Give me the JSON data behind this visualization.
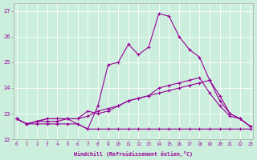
{
  "xlabel": "Windchill (Refroidissement éolien,°C)",
  "bg_color": "#cceedd",
  "line_color": "#990099",
  "ylim": [
    22.0,
    27.3
  ],
  "xlim": [
    -0.3,
    23.3
  ],
  "yticks": [
    22,
    23,
    24,
    25,
    26,
    27
  ],
  "xticks": [
    0,
    1,
    2,
    3,
    4,
    5,
    6,
    7,
    8,
    9,
    10,
    11,
    12,
    13,
    14,
    15,
    16,
    17,
    18,
    19,
    20,
    21,
    22,
    23
  ],
  "series": [
    {
      "x": [
        0,
        1,
        2,
        3,
        4,
        5,
        6,
        7,
        8,
        9,
        10,
        11,
        12,
        13,
        14,
        15,
        16,
        17,
        18,
        19,
        20,
        21,
        22,
        23
      ],
      "y": [
        22.8,
        22.6,
        22.6,
        22.6,
        22.6,
        22.6,
        22.6,
        22.4,
        22.4,
        22.4,
        22.4,
        22.4,
        22.4,
        22.4,
        22.4,
        22.4,
        22.4,
        22.4,
        22.4,
        22.4,
        22.4,
        22.4,
        22.4,
        22.4
      ]
    },
    {
      "x": [
        0,
        1,
        2,
        3,
        4,
        5,
        6,
        7,
        8,
        9,
        10,
        11,
        12,
        13,
        14,
        15,
        16,
        17,
        18,
        19,
        20,
        21,
        22,
        23
      ],
      "y": [
        22.8,
        22.6,
        22.7,
        22.7,
        22.7,
        22.8,
        22.8,
        22.9,
        23.1,
        23.2,
        23.3,
        23.5,
        23.6,
        23.7,
        23.8,
        23.9,
        24.0,
        24.1,
        24.2,
        24.3,
        23.5,
        23.0,
        22.8,
        22.5
      ]
    },
    {
      "x": [
        0,
        1,
        2,
        3,
        4,
        5,
        6,
        7,
        8,
        9,
        10,
        11,
        12,
        13,
        14,
        15,
        16,
        17,
        18,
        19,
        20,
        21,
        22,
        23
      ],
      "y": [
        22.8,
        22.6,
        22.7,
        22.8,
        22.8,
        22.8,
        22.6,
        22.4,
        23.3,
        24.9,
        25.0,
        25.7,
        25.3,
        25.6,
        26.9,
        26.8,
        26.0,
        25.5,
        25.2,
        24.3,
        23.7,
        23.0,
        22.8,
        22.5
      ]
    },
    {
      "x": [
        0,
        1,
        2,
        3,
        4,
        5,
        6,
        7,
        8,
        9,
        10,
        11,
        12,
        13,
        14,
        15,
        16,
        17,
        18,
        19,
        20,
        21,
        22,
        23
      ],
      "y": [
        22.8,
        22.6,
        22.7,
        22.8,
        22.8,
        22.8,
        22.8,
        23.1,
        23.0,
        23.1,
        23.3,
        23.5,
        23.6,
        23.7,
        24.0,
        24.1,
        24.2,
        24.3,
        24.4,
        23.8,
        23.3,
        22.9,
        22.8,
        22.5
      ]
    }
  ]
}
